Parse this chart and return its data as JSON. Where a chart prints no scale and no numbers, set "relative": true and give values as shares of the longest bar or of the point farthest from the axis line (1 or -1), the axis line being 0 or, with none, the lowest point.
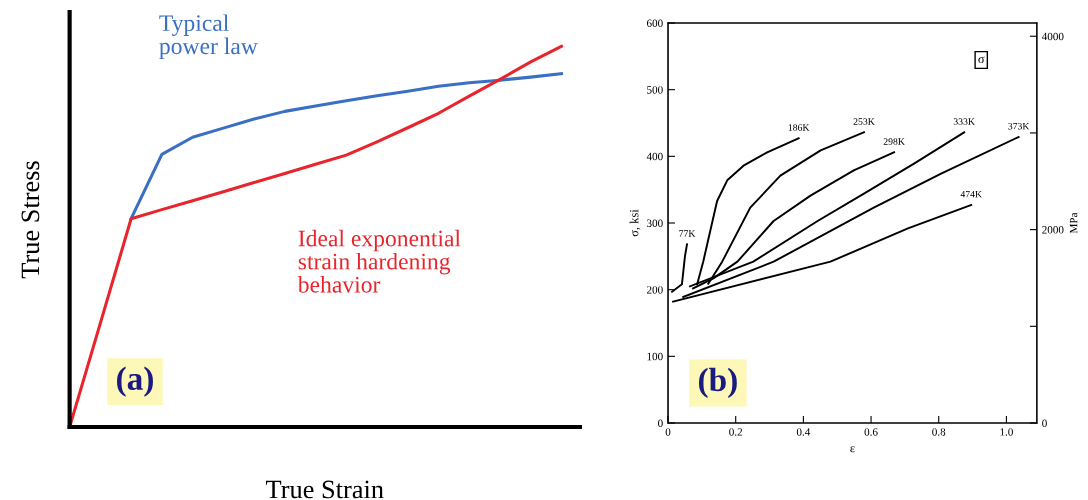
{
  "chart_data": [
    {
      "type": "line",
      "relative": true,
      "xlabel": "True Strain",
      "ylabel": "True Stress",
      "grid": false,
      "legend": false,
      "annotations": [
        "(a)"
      ],
      "categories": [
        null,
        null,
        null,
        null,
        null,
        null,
        null,
        null,
        null,
        null,
        null,
        null,
        null,
        null,
        null,
        null,
        null
      ],
      "series": [
        {
          "name": "Typical\npower law",
          "color": "#3a6fc4",
          "values": [
            null,
            null,
            0.547,
            0.716,
            0.761,
            0.785,
            0.809,
            0.829,
            0.843,
            0.857,
            0.87,
            0.882,
            0.895,
            0.904,
            0.911,
            0.919,
            0.928
          ]
        },
        {
          "name": "Ideal exponential\nstrain hardening\nbehavior",
          "color": "#e8242c",
          "values": [
            0,
            0.273,
            0.547,
            0.571,
            0.594,
            0.618,
            0.642,
            0.666,
            0.69,
            0.714,
            0.749,
            0.786,
            0.824,
            0.869,
            0.913,
            0.959,
            1
          ]
        }
      ]
    },
    {
      "type": "line",
      "xlabel": "ε",
      "ylabel": "σ, ksi",
      "y2label": "MPa",
      "grid": false,
      "legend": false,
      "xlim": [
        0,
        1.09
      ],
      "xticks": [
        0,
        0.2,
        0.4,
        0.6,
        0.8,
        {
          "value": 1.0,
          "label": "1.0"
        }
      ],
      "ylim": [
        0,
        600
      ],
      "yticks": [
        0,
        100,
        200,
        300,
        400,
        500,
        600
      ],
      "y2lim": [
        0,
        4137
      ],
      "y2ticks": [
        0,
        {
          "value": 1000,
          "label": null
        },
        2000,
        {
          "value": 3000,
          "label": null
        },
        4000
      ],
      "annotations": [
        "σ",
        "(b)"
      ],
      "series": [
        {
          "name": "77K",
          "color": "#000000",
          "x": [
            0.012,
            0.041,
            0.05,
            0.056
          ],
          "values": [
            197,
            208,
            250,
            268
          ]
        },
        {
          "name": "186K",
          "color": "#000000",
          "x": [
            0.086,
            0.104,
            0.145,
            0.175,
            0.223,
            0.293,
            0.386
          ],
          "values": [
            208,
            242,
            333,
            364,
            386,
            406,
            427
          ]
        },
        {
          "name": "253K",
          "color": "#000000",
          "x": [
            0.119,
            0.16,
            0.243,
            0.332,
            0.451,
            0.579
          ],
          "values": [
            209,
            242,
            323,
            371,
            409,
            436
          ]
        },
        {
          "name": "298K",
          "color": "#000000",
          "x": [
            0.074,
            0.134,
            0.205,
            0.312,
            0.421,
            0.549,
            0.668
          ],
          "values": [
            202,
            217,
            242,
            303,
            341,
            379,
            406
          ]
        },
        {
          "name": "333K",
          "color": "#000000",
          "x": [
            0.065,
            0.252,
            0.442,
            0.579,
            0.727,
            0.875
          ],
          "values": [
            205,
            242,
            303,
            344,
            389,
            436
          ]
        },
        {
          "name": "373K",
          "color": "#000000",
          "x": [
            0.045,
            0.312,
            0.608,
            0.807,
            1.036
          ],
          "values": [
            189,
            242,
            323,
            374,
            429
          ]
        },
        {
          "name": "474K",
          "color": "#000000",
          "x": [
            0.015,
            0.48,
            0.709,
            0.896
          ],
          "values": [
            182,
            242,
            292,
            327
          ]
        }
      ]
    }
  ]
}
